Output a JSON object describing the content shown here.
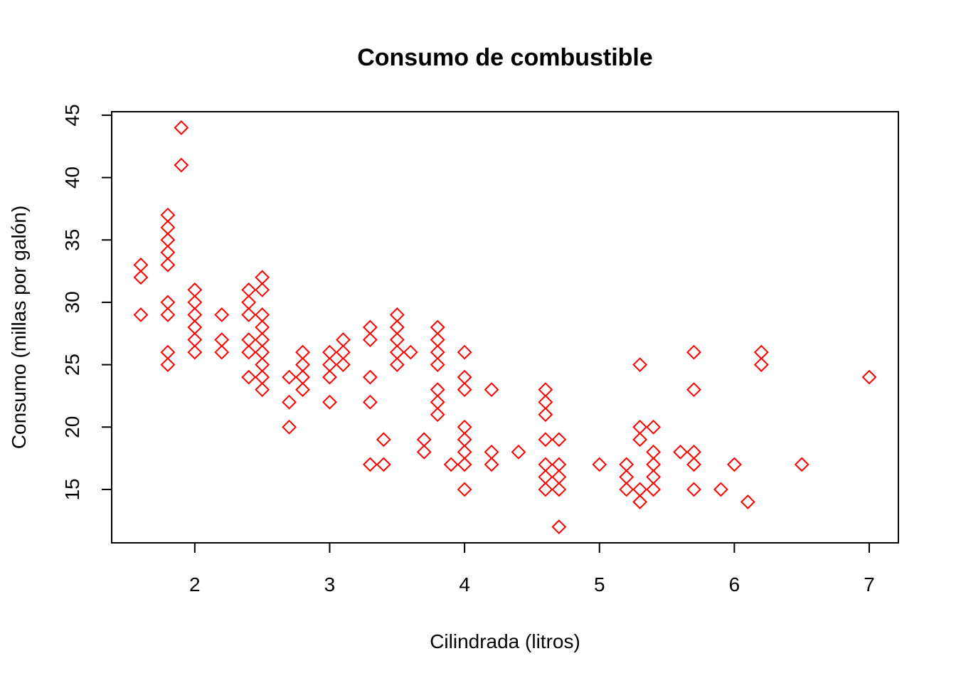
{
  "chart_data": {
    "type": "scatter",
    "title": "Consumo de combustible",
    "xlabel": "Cilindrada (litros)",
    "ylabel": "Consumo (millas por galón)",
    "xlim": [
      1.6,
      7.0
    ],
    "ylim": [
      12,
      44
    ],
    "xticks": [
      2,
      3,
      4,
      5,
      6,
      7
    ],
    "yticks": [
      15,
      20,
      25,
      30,
      35,
      40,
      45
    ],
    "grid": false,
    "marker": "diamond-open",
    "color": "#ff0000",
    "series": [
      {
        "points": [
          [
            1.6,
            33
          ],
          [
            1.6,
            32
          ],
          [
            1.6,
            29
          ],
          [
            1.8,
            37
          ],
          [
            1.8,
            36
          ],
          [
            1.8,
            35
          ],
          [
            1.8,
            34
          ],
          [
            1.8,
            33
          ],
          [
            1.8,
            30
          ],
          [
            1.8,
            29
          ],
          [
            1.8,
            26
          ],
          [
            1.8,
            25
          ],
          [
            1.9,
            44
          ],
          [
            1.9,
            41
          ],
          [
            2.0,
            31
          ],
          [
            2.0,
            30
          ],
          [
            2.0,
            29
          ],
          [
            2.0,
            28
          ],
          [
            2.0,
            27
          ],
          [
            2.0,
            26
          ],
          [
            2.2,
            29
          ],
          [
            2.2,
            27
          ],
          [
            2.2,
            26
          ],
          [
            2.4,
            31
          ],
          [
            2.4,
            30
          ],
          [
            2.4,
            29
          ],
          [
            2.4,
            27
          ],
          [
            2.4,
            26
          ],
          [
            2.4,
            24
          ],
          [
            2.5,
            32
          ],
          [
            2.5,
            31
          ],
          [
            2.5,
            29
          ],
          [
            2.5,
            28
          ],
          [
            2.5,
            27
          ],
          [
            2.5,
            26
          ],
          [
            2.5,
            25
          ],
          [
            2.5,
            24
          ],
          [
            2.5,
            23
          ],
          [
            2.7,
            24
          ],
          [
            2.7,
            22
          ],
          [
            2.7,
            20
          ],
          [
            2.8,
            26
          ],
          [
            2.8,
            25
          ],
          [
            2.8,
            24
          ],
          [
            2.8,
            23
          ],
          [
            3.0,
            26
          ],
          [
            3.0,
            25
          ],
          [
            3.0,
            24
          ],
          [
            3.0,
            22
          ],
          [
            3.1,
            27
          ],
          [
            3.1,
            26
          ],
          [
            3.1,
            25
          ],
          [
            3.3,
            28
          ],
          [
            3.3,
            27
          ],
          [
            3.3,
            24
          ],
          [
            3.3,
            22
          ],
          [
            3.3,
            17
          ],
          [
            3.4,
            19
          ],
          [
            3.4,
            17
          ],
          [
            3.5,
            29
          ],
          [
            3.5,
            28
          ],
          [
            3.5,
            27
          ],
          [
            3.5,
            26
          ],
          [
            3.5,
            25
          ],
          [
            3.6,
            26
          ],
          [
            3.7,
            19
          ],
          [
            3.7,
            18
          ],
          [
            3.8,
            28
          ],
          [
            3.8,
            27
          ],
          [
            3.8,
            26
          ],
          [
            3.8,
            25
          ],
          [
            3.8,
            23
          ],
          [
            3.8,
            22
          ],
          [
            3.8,
            21
          ],
          [
            3.9,
            17
          ],
          [
            4.0,
            26
          ],
          [
            4.0,
            24
          ],
          [
            4.0,
            23
          ],
          [
            4.0,
            20
          ],
          [
            4.0,
            19
          ],
          [
            4.0,
            18
          ],
          [
            4.0,
            17
          ],
          [
            4.0,
            15
          ],
          [
            4.2,
            23
          ],
          [
            4.2,
            18
          ],
          [
            4.2,
            17
          ],
          [
            4.4,
            18
          ],
          [
            4.6,
            23
          ],
          [
            4.6,
            22
          ],
          [
            4.6,
            21
          ],
          [
            4.6,
            19
          ],
          [
            4.6,
            17
          ],
          [
            4.6,
            16
          ],
          [
            4.6,
            15
          ],
          [
            4.7,
            19
          ],
          [
            4.7,
            17
          ],
          [
            4.7,
            16
          ],
          [
            4.7,
            15
          ],
          [
            4.7,
            12
          ],
          [
            5.0,
            17
          ],
          [
            5.2,
            17
          ],
          [
            5.2,
            16
          ],
          [
            5.2,
            15
          ],
          [
            5.3,
            25
          ],
          [
            5.3,
            20
          ],
          [
            5.3,
            19
          ],
          [
            5.3,
            15
          ],
          [
            5.3,
            14
          ],
          [
            5.4,
            20
          ],
          [
            5.4,
            18
          ],
          [
            5.4,
            17
          ],
          [
            5.4,
            16
          ],
          [
            5.4,
            15
          ],
          [
            5.6,
            18
          ],
          [
            5.7,
            26
          ],
          [
            5.7,
            23
          ],
          [
            5.7,
            18
          ],
          [
            5.7,
            17
          ],
          [
            5.7,
            15
          ],
          [
            5.9,
            15
          ],
          [
            6.0,
            17
          ],
          [
            6.1,
            14
          ],
          [
            6.2,
            26
          ],
          [
            6.2,
            25
          ],
          [
            6.5,
            17
          ],
          [
            7.0,
            24
          ]
        ]
      }
    ]
  }
}
